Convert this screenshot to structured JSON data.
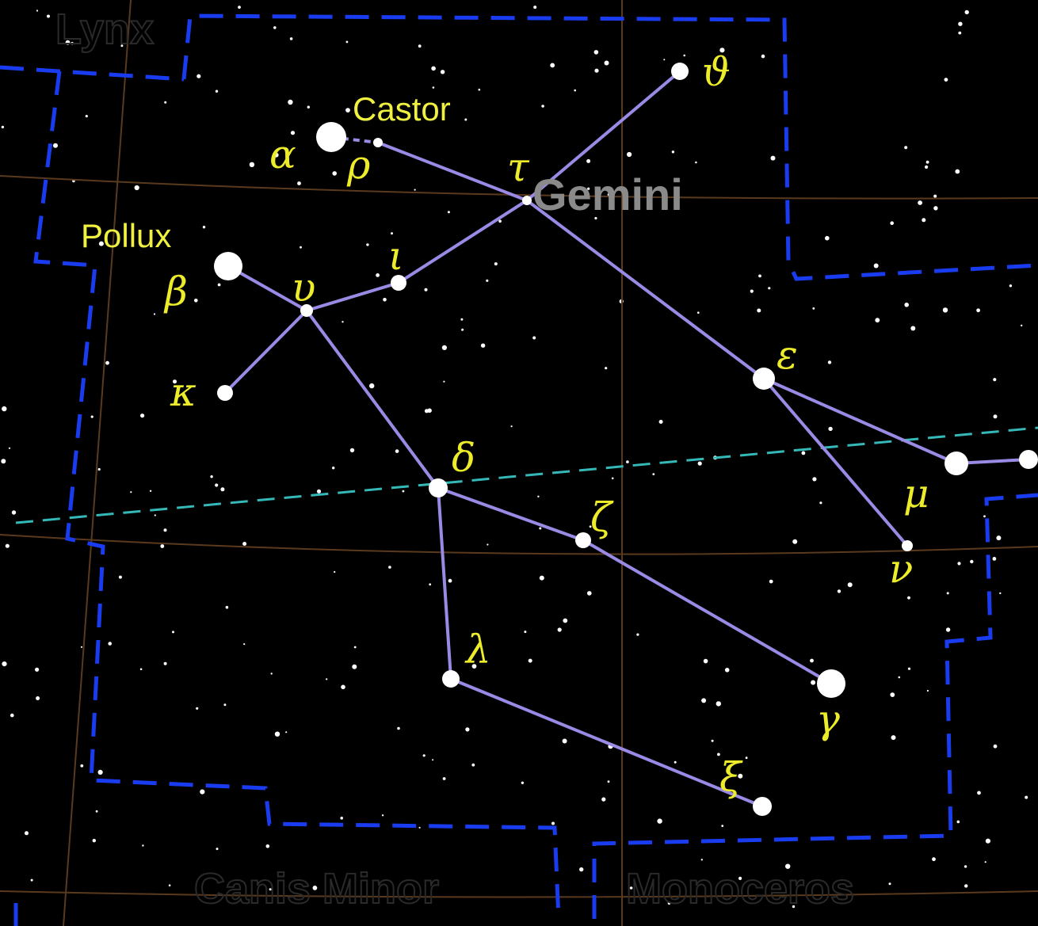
{
  "map": {
    "constellation": "Gemini",
    "named_stars": [
      "Castor",
      "Pollux"
    ],
    "greek_labels": [
      "α",
      "ρ",
      "τ",
      "ϑ",
      "ι",
      "υ",
      "β",
      "κ",
      "δ",
      "ζ",
      "ε",
      "μ",
      "ν",
      "λ",
      "γ",
      "ξ"
    ],
    "neighbors": [
      "Lynx",
      "Canis Minor",
      "Monoceros"
    ]
  }
}
